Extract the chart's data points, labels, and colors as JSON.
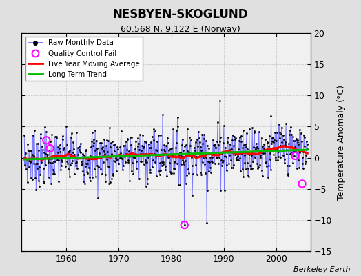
{
  "title": "NESBYEN-SKOGLUND",
  "subtitle": "60.568 N, 9.122 E (Norway)",
  "ylabel": "Temperature Anomaly (°C)",
  "credit": "Berkeley Earth",
  "xlim": [
    1951.5,
    2006.5
  ],
  "ylim": [
    -15,
    20
  ],
  "yticks": [
    -15,
    -10,
    -5,
    0,
    5,
    10,
    15,
    20
  ],
  "xticks": [
    1960,
    1970,
    1980,
    1990,
    2000
  ],
  "start_year": 1952,
  "end_year": 2006,
  "bg_color": "#e0e0e0",
  "plot_bg_color": "#f0f0f0",
  "raw_line_color": "#6666ff",
  "raw_dot_color": "#000000",
  "moving_avg_color": "#ff0000",
  "trend_color": "#00bb00",
  "qc_fail_color": "#ff00ff",
  "seed": 7
}
